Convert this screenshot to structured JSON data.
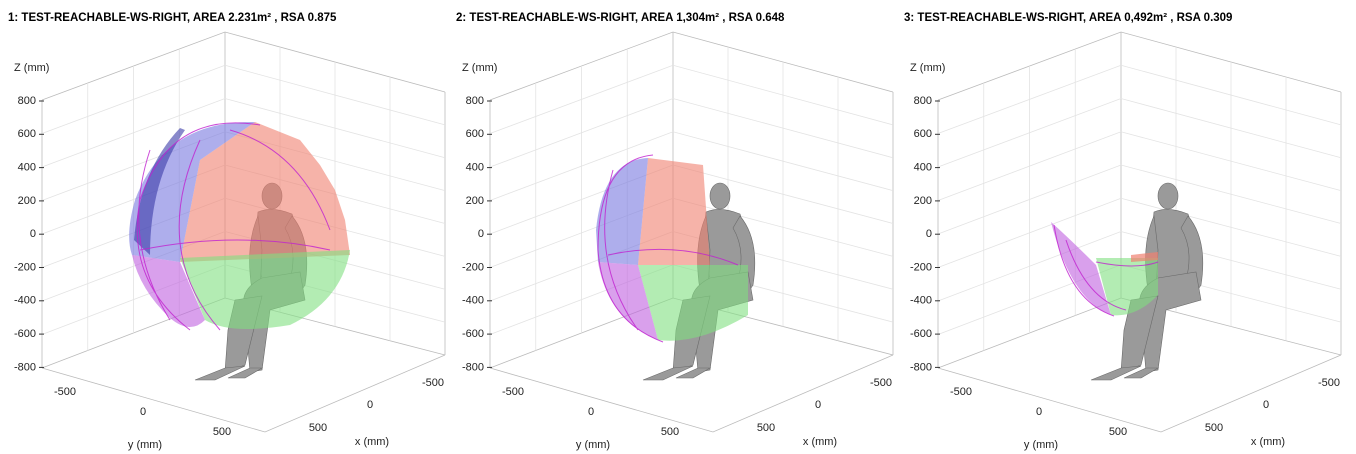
{
  "panels": [
    {
      "title": "1: TEST-REACHABLE-WS-RIGHT, AREA 2.231m² , RSA 0.875",
      "z_label": "Z (mm)",
      "z_ticks": [
        "800",
        "600",
        "400",
        "200",
        "0",
        "-200",
        "-400",
        "-600",
        "-800"
      ],
      "y_label": "y (mm)",
      "y_ticks": [
        "-500",
        "0",
        "500"
      ],
      "x_label": "x (mm)",
      "x_ticks": [
        "500",
        "0",
        "-500"
      ]
    },
    {
      "title": "2: TEST-REACHABLE-WS-RIGHT, AREA 1,304m² , RSA 0.648",
      "z_label": "Z (mm)",
      "z_ticks": [
        "800",
        "600",
        "400",
        "200",
        "0",
        "-200",
        "-400",
        "-600",
        "-800"
      ],
      "y_label": "y (mm)",
      "y_ticks": [
        "-500",
        "0",
        "500"
      ],
      "x_label": "x (mm)",
      "x_ticks": [
        "500",
        "0",
        "-500"
      ]
    },
    {
      "title": "3: TEST-REACHABLE-WS-RIGHT, AREA 0,492m² , RSA 0.309",
      "z_label": "Z (mm)",
      "z_ticks": [
        "800",
        "600",
        "400",
        "200",
        "0",
        "-200",
        "-400",
        "-600",
        "-800"
      ],
      "y_label": "y (mm)",
      "y_ticks": [
        "-500",
        "0",
        "500"
      ],
      "x_label": "x (mm)",
      "x_ticks": [
        "500",
        "0",
        "-500"
      ]
    }
  ]
}
